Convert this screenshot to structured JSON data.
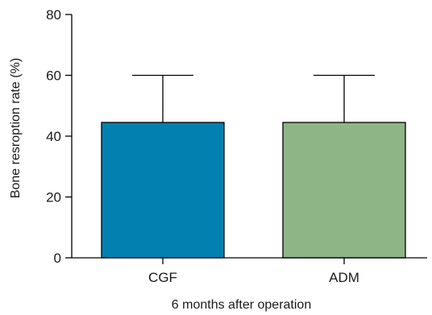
{
  "chart_data": {
    "type": "bar",
    "title": "",
    "xlabel": "6 months after operation",
    "ylabel": "Bone resroption rate (%)",
    "ylim": [
      0,
      80
    ],
    "yticks": [
      0,
      20,
      40,
      60,
      80
    ],
    "grid": false,
    "categories": [
      "CGF",
      "ADM"
    ],
    "values": [
      44.5,
      44.5
    ],
    "error_upper": [
      60,
      60
    ],
    "colors": [
      "#0081b0",
      "#8db585"
    ]
  }
}
